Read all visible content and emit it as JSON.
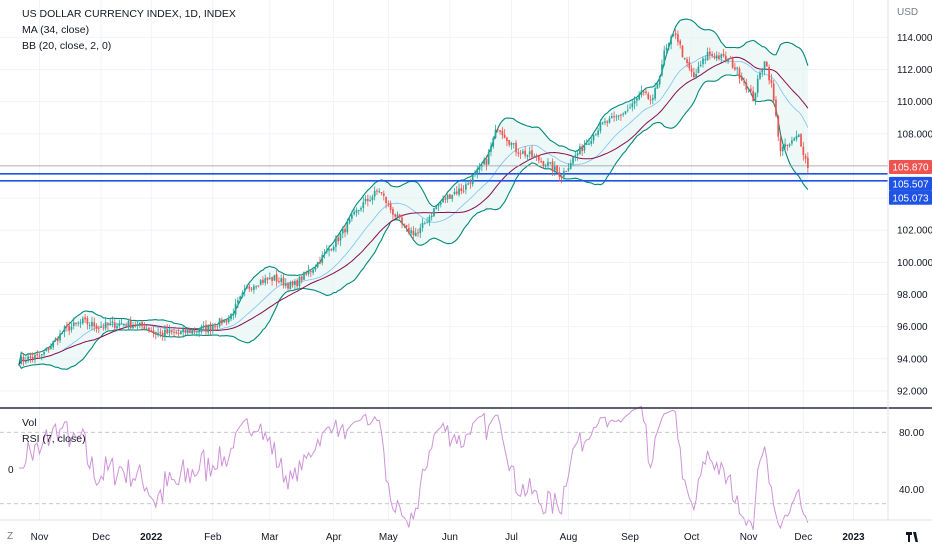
{
  "legend": {
    "title": "US DOLLAR CURRENCY INDEX, 1D, INDEX",
    "ma": "MA (34, close)",
    "bb": "BB (20, close, 2, 0)",
    "vol": "Vol",
    "rsi": "RSI (7, close)"
  },
  "currency": "USD",
  "volume_zero": "0",
  "corner_icons": {
    "left": "Z",
    "right": "tradingview-logo-icon"
  },
  "colors": {
    "up": "#26a69a",
    "down": "#ef5350",
    "ma": "#880e4f",
    "bb_band": "#00897b",
    "bb_basis": "#2196f3",
    "bb_fill": "#e0f2f1",
    "rsi": "#ce93d8",
    "hline": "#1e53e5",
    "price_label": "#ef5350"
  },
  "price_labels": [
    {
      "value": 105.87,
      "text": "105.870",
      "color": "#ef5350"
    },
    {
      "value": 105.507,
      "text": "105.507",
      "color": "#1e53e5"
    },
    {
      "value": 105.073,
      "text": "105.073",
      "color": "#1e53e5"
    }
  ],
  "chart_data": [
    {
      "type": "candlestick",
      "title": "US DOLLAR CURRENCY INDEX, 1D, INDEX",
      "ylim": [
        91.0,
        115.7
      ],
      "y_ticks": [
        "92.000",
        "94.000",
        "96.000",
        "98.000",
        "100.000",
        "102.000",
        "104.000",
        "106.000",
        "108.000",
        "110.000",
        "112.000",
        "114.000"
      ],
      "x_labels": [
        "Nov",
        "Dec",
        "2022",
        "Feb",
        "Mar",
        "Apr",
        "May",
        "Jun",
        "Jul",
        "Aug",
        "Sep",
        "Oct",
        "Nov",
        "Dec",
        "2023"
      ],
      "horizontal_lines": [
        105.507,
        105.073
      ],
      "close_anchors": [
        [
          0,
          93.9
        ],
        [
          10,
          94.2
        ],
        [
          20,
          95.8
        ],
        [
          28,
          96.3
        ],
        [
          35,
          96.0
        ],
        [
          45,
          96.2
        ],
        [
          55,
          96.0
        ],
        [
          60,
          95.6
        ],
        [
          70,
          95.6
        ],
        [
          82,
          95.9
        ],
        [
          92,
          96.5
        ],
        [
          100,
          98.4
        ],
        [
          105,
          98.8
        ],
        [
          112,
          99.0
        ],
        [
          120,
          98.5
        ],
        [
          130,
          99.8
        ],
        [
          140,
          101.5
        ],
        [
          150,
          103.5
        ],
        [
          158,
          104.5
        ],
        [
          163,
          103.3
        ],
        [
          170,
          102.0
        ],
        [
          175,
          101.8
        ],
        [
          183,
          103.5
        ],
        [
          190,
          104.3
        ],
        [
          195,
          104.6
        ],
        [
          205,
          106.3
        ],
        [
          210,
          108.5
        ],
        [
          218,
          107.0
        ],
        [
          225,
          106.6
        ],
        [
          232,
          106.1
        ],
        [
          238,
          105.4
        ],
        [
          242,
          106.3
        ],
        [
          248,
          107.3
        ],
        [
          255,
          108.5
        ],
        [
          262,
          109.0
        ],
        [
          268,
          109.6
        ],
        [
          273,
          110.5
        ],
        [
          278,
          110.0
        ],
        [
          283,
          113.0
        ],
        [
          288,
          114.3
        ],
        [
          292,
          112.5
        ],
        [
          296,
          111.5
        ],
        [
          302,
          113.0
        ],
        [
          307,
          112.8
        ],
        [
          312,
          112.5
        ],
        [
          317,
          111.5
        ],
        [
          322,
          110.2
        ],
        [
          327,
          112.7
        ],
        [
          330,
          111.0
        ],
        [
          334,
          107.0
        ],
        [
          338,
          107.3
        ],
        [
          342,
          107.9
        ],
        [
          345,
          106.4
        ],
        [
          346,
          105.87
        ]
      ]
    },
    {
      "type": "line",
      "title": "RSI (7, close)",
      "ylim": [
        20,
        90
      ],
      "y_ticks": [
        "40.00",
        "80.00"
      ],
      "reference_levels": [
        30,
        80
      ]
    }
  ]
}
